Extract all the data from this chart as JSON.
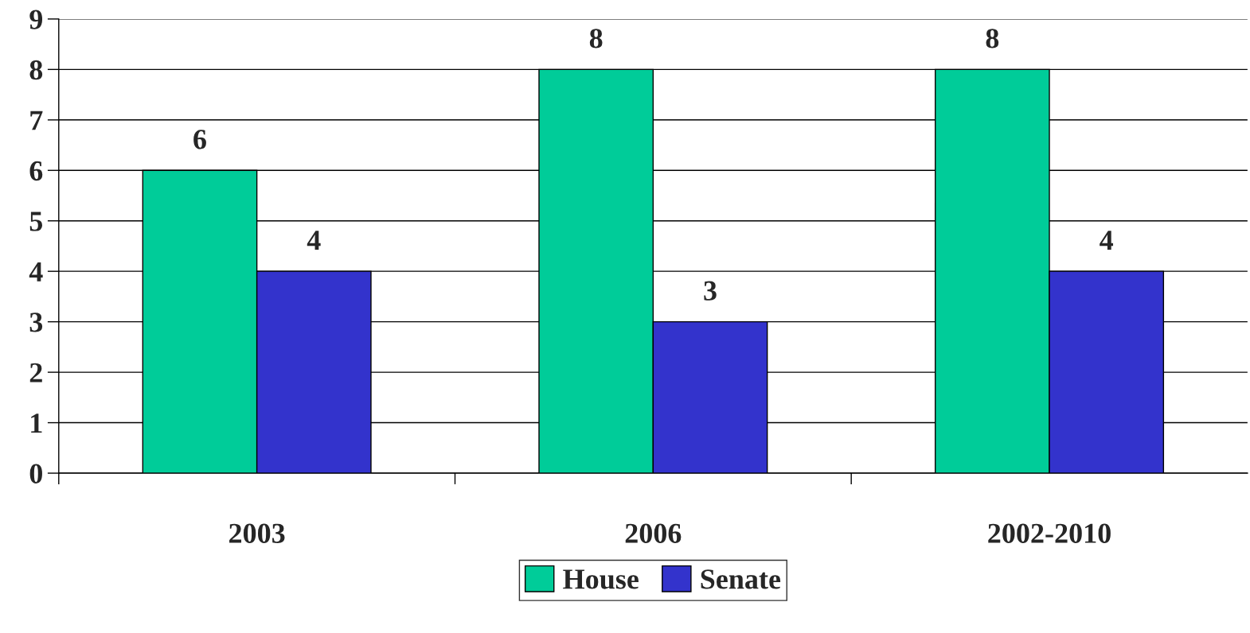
{
  "chart_data": {
    "type": "bar",
    "categories": [
      "2003",
      "2006",
      "2002-2010"
    ],
    "series": [
      {
        "name": "House",
        "color": "#00cc99",
        "values": [
          6,
          8,
          8
        ]
      },
      {
        "name": "Senate",
        "color": "#3333cc",
        "values": [
          4,
          3,
          4
        ]
      }
    ],
    "ylim": [
      0,
      9
    ],
    "yticks": [
      0,
      1,
      2,
      3,
      4,
      5,
      6,
      7,
      8,
      9
    ],
    "grid": "y",
    "legend": "bottom",
    "data_labels": true
  }
}
